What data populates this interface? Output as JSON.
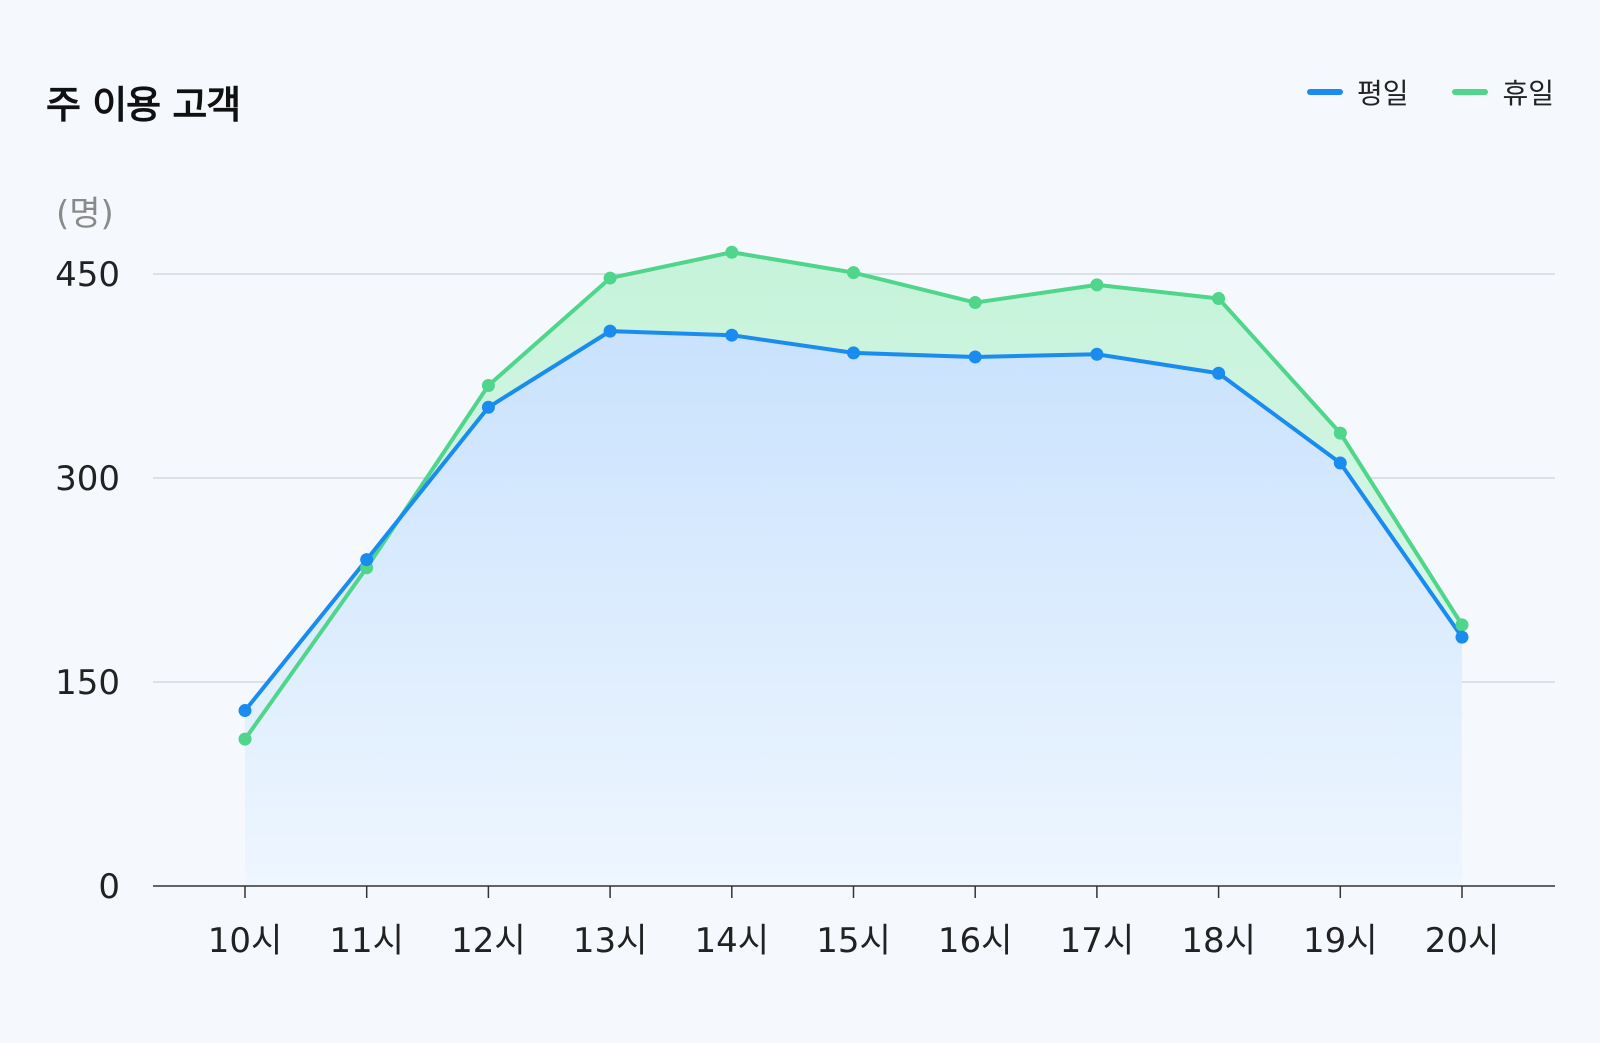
{
  "chart_data": {
    "type": "line",
    "title": "주 이용 고객",
    "ylabel": "(명)",
    "xlabel": "",
    "categories": [
      "10시",
      "11시",
      "12시",
      "13시",
      "14시",
      "15시",
      "16시",
      "17시",
      "18시",
      "19시",
      "20시"
    ],
    "series": [
      {
        "name": "평일",
        "color": "#1a8cf0",
        "values": [
          129,
          240,
          352,
          408,
          405,
          392,
          389,
          391,
          377,
          311,
          183
        ]
      },
      {
        "name": "휴일",
        "color": "#4fd68b",
        "values": [
          108,
          234,
          368,
          447,
          466,
          451,
          429,
          442,
          432,
          333,
          192
        ]
      }
    ],
    "yticks": [
      "450",
      "300",
      "150",
      "0"
    ],
    "ytick_values": [
      450,
      300,
      150,
      0
    ],
    "ylim": [
      0,
      450
    ],
    "grid": true,
    "legend_position": "top-right"
  }
}
